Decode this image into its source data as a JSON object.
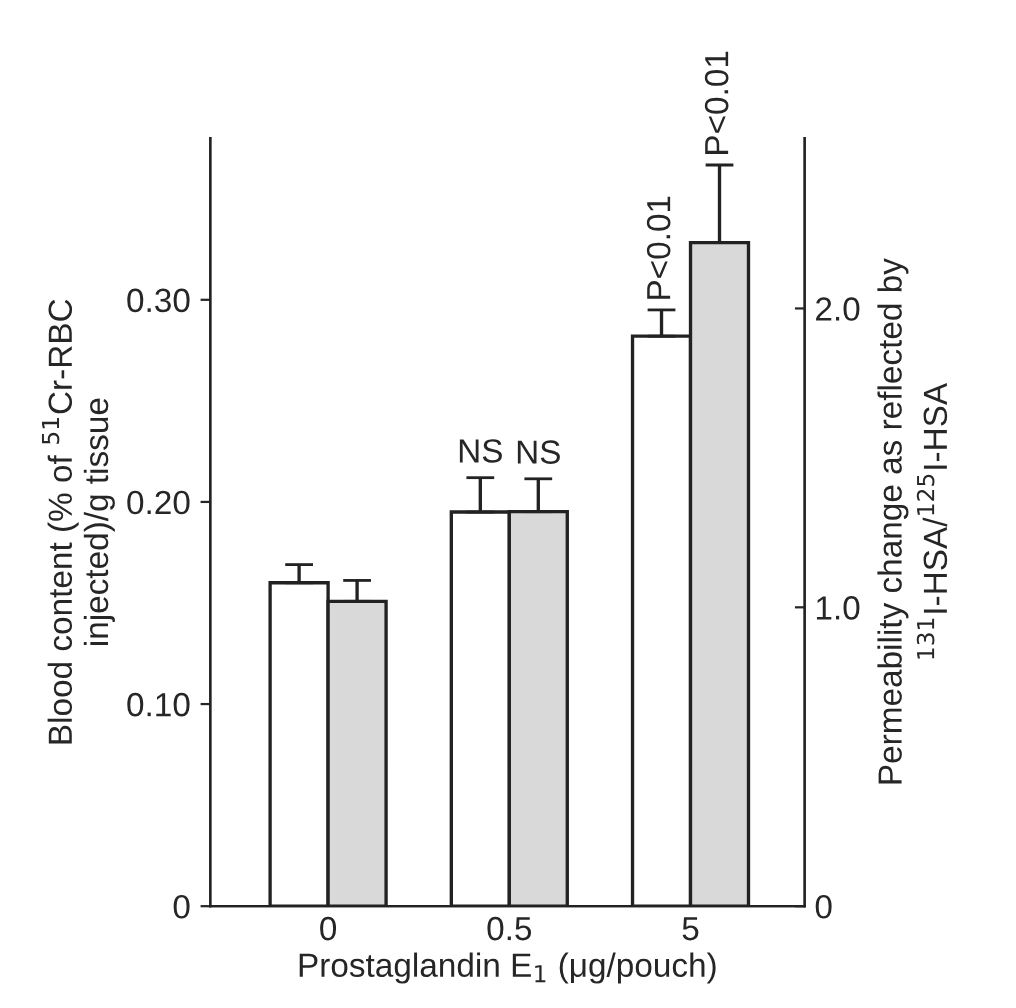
{
  "chart_data": {
    "type": "bar",
    "xlabel": "Prostaglandin E$_{1}$ (μg/pouch)",
    "ylabel": "Blood content (% of $^{51}$Cr-RBC\ninjected)/g tissue",
    "y2label": "Permeability change as reflected by\n$^{131}$I-HSA/$^{125}$I-HSA",
    "categories": [
      "0",
      "0.5",
      "5"
    ],
    "series": [
      {
        "color": "#ffffff",
        "values": [
          0.16,
          0.195,
          0.282
        ],
        "errors": [
          0.009,
          0.017,
          0.013
        ],
        "value_labels": [
          null,
          "NS",
          "P<0.01"
        ]
      },
      {
        "color": "#d9d9d9",
        "axis": "y2",
        "values": [
          1.02,
          1.32,
          2.22
        ],
        "errors": [
          0.07,
          0.11,
          0.26
        ],
        "value_labels": [
          null,
          "NS",
          "P<0.01"
        ]
      }
    ],
    "ylim": [
      0,
      0.38
    ],
    "yticks": [
      0,
      {
        "value": 0.1,
        "label": "0.10"
      },
      {
        "value": 0.2,
        "label": "0.20"
      },
      {
        "value": 0.3,
        "label": "0.30"
      }
    ],
    "y2lim": [
      0,
      2.57
    ],
    "y2ticks": [
      0,
      {
        "value": 1.0,
        "label": "1.0"
      },
      {
        "value": 2.0,
        "label": "2.0"
      }
    ]
  }
}
